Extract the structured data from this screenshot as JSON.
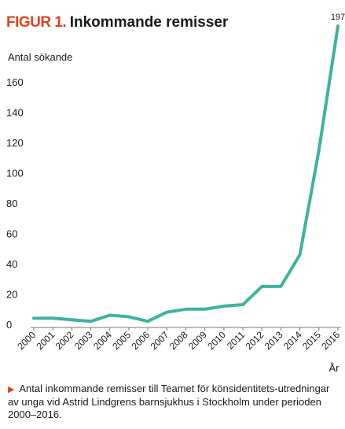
{
  "chart_data": {
    "type": "line",
    "figure_label": "FIGUR 1.",
    "title": "Inkommande remisser",
    "ylabel": "Antal sökande",
    "xlabel": "År",
    "x": [
      "2000",
      "2001",
      "2002",
      "2003",
      "2004",
      "2005",
      "2006",
      "2007",
      "2008",
      "2009",
      "2010",
      "2011",
      "2012",
      "2013",
      "2014",
      "2015",
      "2016"
    ],
    "series": [
      {
        "values": [
          4,
          4,
          3,
          2,
          6,
          5,
          2,
          8,
          10,
          10,
          12,
          13,
          25,
          25,
          46,
          115,
          197
        ]
      }
    ],
    "ylim": [
      0,
      197
    ],
    "yticks": [
      0,
      20,
      40,
      60,
      80,
      100,
      120,
      140,
      160
    ],
    "end_label": "197",
    "grid": false,
    "line_color": "#3cb39f"
  },
  "caption": {
    "marker": "▶",
    "text": "Antal inkommande remisser till Teamet för könsidentitets-utredningar av unga vid Astrid Lindgrens barnsjukhus i Stockholm under perioden 2000–2016."
  }
}
